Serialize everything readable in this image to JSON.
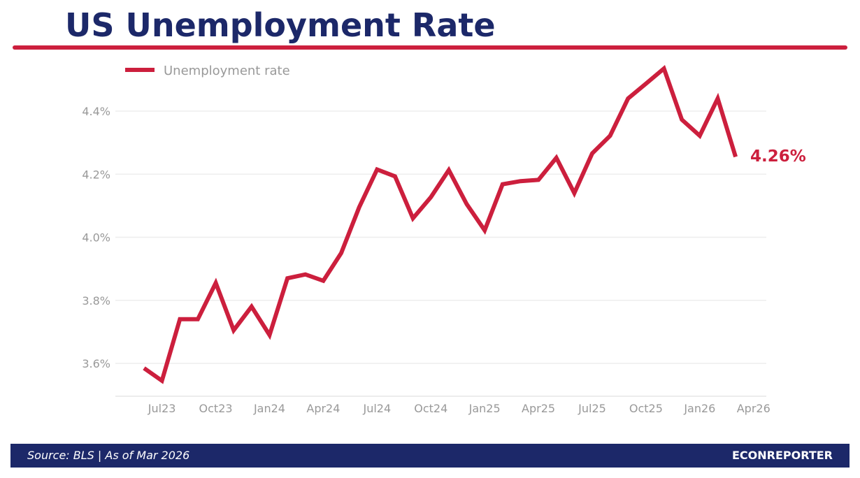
{
  "header": {
    "title": "US Unemployment Rate"
  },
  "footer": {
    "source": "Source: BLS  |  As of Mar 2026",
    "brand": "ECONREPORTER"
  },
  "chart_data": {
    "type": "line",
    "title": "US Unemployment Rate",
    "xlabel": "",
    "ylabel": "",
    "x_ticks": [
      "Jul23",
      "Oct23",
      "Jan24",
      "Apr24",
      "Jul24",
      "Oct24",
      "Jan25",
      "Apr25",
      "Jul25",
      "Oct25",
      "Jan26",
      "Apr26"
    ],
    "y_ticks": [
      "3.6%",
      "3.8%",
      "4.0%",
      "4.2%",
      "4.4%"
    ],
    "y_tick_values": [
      3.6,
      3.8,
      4.0,
      4.2,
      4.4
    ],
    "ylim": [
      3.49,
      4.58
    ],
    "x": [
      "2023-06",
      "2023-07",
      "2023-08",
      "2023-09",
      "2023-10",
      "2023-11",
      "2023-12",
      "2024-01",
      "2024-02",
      "2024-03",
      "2024-04",
      "2024-05",
      "2024-06",
      "2024-07",
      "2024-08",
      "2024-09",
      "2024-10",
      "2024-11",
      "2024-12",
      "2025-01",
      "2025-02",
      "2025-03",
      "2025-04",
      "2025-05",
      "2025-06",
      "2025-07",
      "2025-08",
      "2025-09",
      "2025-10",
      "2025-11",
      "2025-12",
      "2026-01",
      "2026-02",
      "2026-03"
    ],
    "series": [
      {
        "name": "Unemployment rate",
        "color": "#cc1f3d",
        "values": [
          3.585,
          3.545,
          3.74,
          3.74,
          3.855,
          3.705,
          3.78,
          3.69,
          3.87,
          3.882,
          3.862,
          3.95,
          4.095,
          4.215,
          4.193,
          4.06,
          4.127,
          4.213,
          4.105,
          4.022,
          4.168,
          4.178,
          4.182,
          4.252,
          4.14,
          4.266,
          4.322,
          4.44,
          4.487,
          4.535,
          4.373,
          4.322,
          4.44,
          4.255
        ]
      }
    ],
    "end_label": "4.26%",
    "legend_position": "top-left",
    "grid": "horizontal",
    "grid_color": "#eeeeee",
    "axis_text_color": "#999999"
  }
}
